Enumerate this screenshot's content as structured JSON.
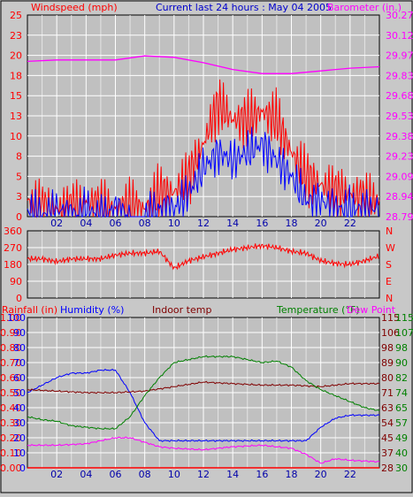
{
  "header": {
    "left_label": "Windspeed (mph)",
    "center_label": "Current last 24 hours : May 04 2005",
    "right_label": "Barometer (in.)"
  },
  "panel3_labels": {
    "rainfall": "Rainfall (in)",
    "humidity": "Humidity (%)",
    "indoor": "Indoor temp",
    "temperature": "Temperature (°F)",
    "dewpoint": "Dew Point"
  },
  "colors": {
    "windspeed": "#ff0000",
    "gust": "#0000ff",
    "barometer": "#ff00ff",
    "direction": "#ff0000",
    "rainfall": "#ff0000",
    "humidity": "#0000ff",
    "indoor": "#800000",
    "temperature": "#008000",
    "dewpoint": "#ff00ff"
  },
  "chart_data": [
    {
      "type": "line",
      "panel": "wind-barometer",
      "x_ticks": [
        "02",
        "04",
        "06",
        "08",
        "10",
        "12",
        "14",
        "16",
        "18",
        "20",
        "22"
      ],
      "y_left_ticks": [
        "0",
        "3",
        "5",
        "8",
        "10",
        "13",
        "15",
        "18",
        "20",
        "23",
        "25"
      ],
      "y_left_range": [
        0,
        25
      ],
      "y_right_ticks": [
        "28.79",
        "28.94",
        "29.09",
        "29.23",
        "29.38",
        "29.53",
        "29.68",
        "29.83",
        "29.97",
        "30.12",
        "30.27"
      ],
      "y_right_range": [
        28.79,
        30.27
      ],
      "grid": true,
      "series": [
        {
          "name": "Windspeed",
          "axis": "left",
          "x": [
            0,
            1,
            2,
            3,
            4,
            5,
            6,
            7,
            8,
            9,
            10,
            11,
            12,
            13,
            14,
            15,
            16,
            17,
            18,
            19,
            20,
            21,
            22,
            23,
            24
          ],
          "y": [
            2,
            1,
            1,
            1,
            2,
            1,
            1,
            1,
            1,
            3,
            3,
            5,
            9,
            14,
            12,
            12,
            13,
            12,
            8,
            5,
            4,
            3,
            3,
            2,
            2
          ]
        },
        {
          "name": "Gust",
          "axis": "left",
          "x": [
            0,
            1,
            2,
            3,
            4,
            5,
            6,
            7,
            8,
            9,
            10,
            11,
            12,
            13,
            14,
            15,
            16,
            17,
            18,
            19,
            20,
            21,
            22,
            23,
            24
          ],
          "y": [
            1,
            0,
            1,
            0,
            1,
            0,
            1,
            0,
            0,
            1,
            1,
            3,
            6,
            8,
            7,
            8,
            9,
            7,
            5,
            2,
            2,
            1,
            1,
            1,
            1
          ]
        },
        {
          "name": "Barometer",
          "axis": "right",
          "x": [
            0,
            2,
            4,
            6,
            8,
            10,
            12,
            14,
            16,
            18,
            20,
            22,
            24
          ],
          "y": [
            29.93,
            29.94,
            29.94,
            29.94,
            29.97,
            29.96,
            29.92,
            29.87,
            29.84,
            29.84,
            29.86,
            29.88,
            29.89
          ]
        }
      ]
    },
    {
      "type": "line",
      "panel": "wind-direction",
      "y_left_ticks": [
        "360",
        "270",
        "180",
        "90",
        "0"
      ],
      "y_left_range": [
        0,
        360
      ],
      "y_right_ticks": [
        "N",
        "W",
        "S",
        "E",
        "N"
      ],
      "grid": true,
      "series": [
        {
          "name": "Direction",
          "x": [
            0,
            1,
            2,
            3,
            4,
            5,
            6,
            7,
            8,
            9,
            10,
            11,
            12,
            13,
            14,
            15,
            16,
            17,
            18,
            19,
            20,
            21,
            22,
            23,
            24
          ],
          "y": [
            210,
            210,
            195,
            210,
            210,
            210,
            230,
            240,
            240,
            250,
            160,
            200,
            220,
            240,
            260,
            270,
            280,
            270,
            250,
            240,
            200,
            185,
            180,
            200,
            225
          ]
        }
      ]
    },
    {
      "type": "line",
      "panel": "temp-humidity",
      "y_far_left_ticks": [
        "0.00",
        "0.10",
        "0.20",
        "0.30",
        "0.40",
        "0.50",
        "0.60",
        "0.70",
        "0.80",
        "0.90",
        "1.00"
      ],
      "y_left_ticks": [
        "0",
        "10",
        "20",
        "30",
        "40",
        "50",
        "60",
        "70",
        "80",
        "90",
        "100"
      ],
      "y_left_range": [
        0,
        100
      ],
      "y_right_ticks": [
        "28",
        "37",
        "45",
        "54",
        "63",
        "71",
        "80",
        "89",
        "98",
        "106",
        "115"
      ],
      "y_right2_ticks": [
        "30",
        "40",
        "49",
        "57",
        "65",
        "74",
        "82",
        "90",
        "98",
        "107",
        "115"
      ],
      "grid": true,
      "series": [
        {
          "name": "Rainfall",
          "x": [
            0,
            24
          ],
          "y": [
            0,
            0
          ]
        },
        {
          "name": "Humidity",
          "x": [
            0,
            1,
            2,
            3,
            4,
            5,
            6,
            7,
            8,
            9,
            10,
            12,
            14,
            16,
            18,
            19,
            20,
            21,
            22,
            23,
            24
          ],
          "y": [
            50,
            55,
            60,
            63,
            63,
            65,
            65,
            50,
            30,
            18,
            18,
            18,
            18,
            18,
            18,
            18,
            27,
            33,
            35,
            35,
            35
          ]
        },
        {
          "name": "Indoor temp",
          "x": [
            0,
            2,
            4,
            6,
            8,
            10,
            12,
            14,
            16,
            18,
            20,
            22,
            24
          ],
          "y": [
            52,
            51,
            50,
            50,
            51,
            54,
            57,
            56,
            55,
            55,
            54,
            56,
            56
          ]
        },
        {
          "name": "Temperature",
          "x": [
            0,
            1,
            2,
            3,
            4,
            5,
            6,
            7,
            8,
            9,
            10,
            12,
            14,
            16,
            17,
            18,
            19,
            20,
            22,
            23,
            24
          ],
          "y": [
            34,
            32,
            31,
            28,
            27,
            26,
            26,
            34,
            48,
            60,
            70,
            74,
            74,
            70,
            71,
            67,
            58,
            52,
            44,
            40,
            38
          ]
        },
        {
          "name": "Dew Point",
          "x": [
            0,
            2,
            4,
            6,
            7,
            8,
            9,
            10,
            12,
            14,
            16,
            18,
            19,
            20,
            21,
            22,
            24
          ],
          "y": [
            15,
            15,
            16,
            20,
            20,
            17,
            14,
            13,
            12,
            14,
            15,
            13,
            9,
            3,
            6,
            5,
            4
          ]
        }
      ]
    }
  ]
}
